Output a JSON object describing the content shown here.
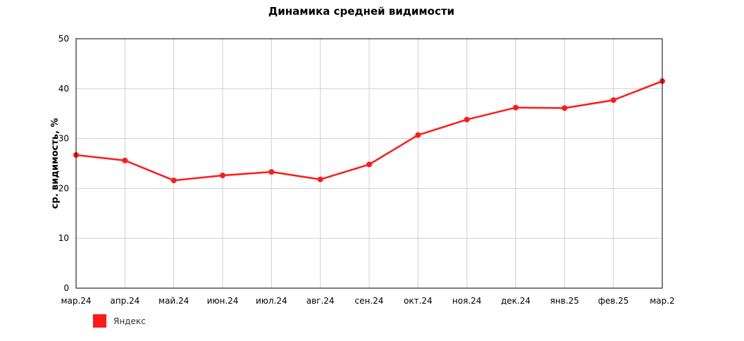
{
  "chart_data": {
    "type": "line",
    "title": "Динамика средней видимости",
    "xlabel": "",
    "ylabel": "ср. видимость, %",
    "categories": [
      "мар.24",
      "апр.24",
      "май.24",
      "июн.24",
      "июл.24",
      "авг.24",
      "сен.24",
      "окт.24",
      "ноя.24",
      "дек.24",
      "янв.25",
      "фев.25",
      "мар.2"
    ],
    "ylim": [
      0,
      50
    ],
    "yticks": [
      0,
      10,
      20,
      30,
      40,
      50
    ],
    "grid": true,
    "legend_position": "bottom-left",
    "series": [
      {
        "name": "Яндекс",
        "color": "#ff1a1a",
        "values": [
          26.7,
          25.6,
          21.6,
          22.6,
          23.3,
          21.8,
          24.8,
          30.7,
          33.8,
          36.2,
          36.1,
          37.7,
          41.5
        ]
      }
    ]
  }
}
